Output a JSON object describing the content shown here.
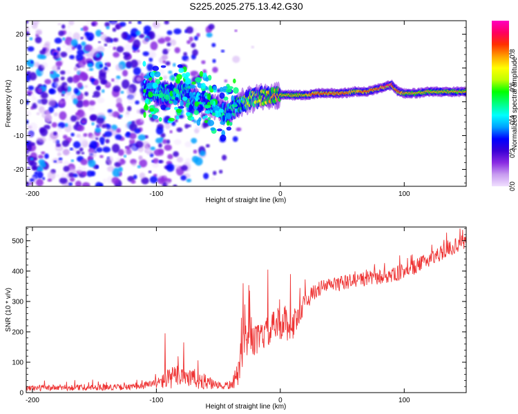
{
  "title": "S225.2025.275.13.42.G30",
  "chart_data": [
    {
      "type": "heatmap",
      "title": "S225.2025.275.13.42.G30",
      "xlabel": "Height of straight line (km)",
      "ylabel": "Frequency (Hz)",
      "xlim": [
        -205,
        150
      ],
      "ylim": [
        -25,
        24
      ],
      "xticks": [
        -200,
        -100,
        0,
        100
      ],
      "xtick_labels": [
        "-200",
        "-100",
        "0",
        "100"
      ],
      "yticks": [
        -20,
        -10,
        0,
        10,
        20
      ],
      "ytick_labels": [
        "-20",
        "-10",
        "0",
        "10",
        "20"
      ],
      "colorbar": {
        "label": "Normalized spectral amplitude",
        "range": [
          0,
          1
        ],
        "ticks": [
          0.0,
          0.2,
          0.4,
          0.6,
          0.8
        ],
        "tick_labels": [
          "0.0",
          "0.2",
          "0.4",
          "0.6",
          "0.8"
        ],
        "colors": [
          "#f0e0ff",
          "#c89cf0",
          "#8a2be2",
          "#3b00d6",
          "#0000ff",
          "#00a0ff",
          "#00ffff",
          "#00ff80",
          "#00ff00",
          "#c0ff00",
          "#ffff00",
          "#ffa000",
          "#ff3000",
          "#ff0060",
          "#ff00c0"
        ]
      },
      "ridge": {
        "x": [
          -110,
          -100,
          -90,
          -80,
          -70,
          -60,
          -50,
          -45,
          -40,
          -35,
          -30,
          -20,
          -10,
          0,
          10,
          20,
          30,
          40,
          50,
          60,
          70,
          80,
          85,
          90,
          95,
          100,
          110,
          120,
          130,
          140,
          150
        ],
        "y": [
          4,
          3,
          2,
          3,
          1,
          0,
          -2,
          -3,
          -3,
          -1,
          0,
          1,
          1.5,
          2,
          2,
          2,
          2.5,
          2.5,
          2.5,
          3,
          3,
          4,
          4.5,
          5,
          3,
          2.5,
          2.5,
          3,
          3,
          3,
          3
        ],
        "strength": [
          0.4,
          0.45,
          0.5,
          0.5,
          0.45,
          0.4,
          0.45,
          0.5,
          0.5,
          0.55,
          0.6,
          0.7,
          0.75,
          0.8,
          0.8,
          0.8,
          0.85,
          0.85,
          0.85,
          0.8,
          0.85,
          0.9,
          0.9,
          0.9,
          0.85,
          0.8,
          0.8,
          0.8,
          0.8,
          0.8,
          0.8
        ]
      }
    },
    {
      "type": "line",
      "xlabel": "Height of straight line (km)",
      "ylabel": "SNR (10 * v/v)",
      "xlim": [
        -205,
        150
      ],
      "ylim": [
        0,
        545
      ],
      "xticks": [
        -200,
        -100,
        0,
        100
      ],
      "xtick_labels": [
        "-200",
        "-100",
        "0",
        "100"
      ],
      "yticks": [
        0,
        100,
        200,
        300,
        400,
        500
      ],
      "ytick_labels": [
        "0",
        "100",
        "200",
        "300",
        "400",
        "500"
      ],
      "series": [
        {
          "name": "SNR",
          "color": "#ee3333",
          "trend_x": [
            -205,
            -120,
            -100,
            -90,
            -80,
            -70,
            -60,
            -50,
            -40,
            -35,
            -30,
            -25,
            -20,
            -10,
            0,
            10,
            20,
            30,
            40,
            50,
            60,
            70,
            80,
            90,
            100,
            110,
            120,
            130,
            140,
            150
          ],
          "trend_y": [
            15,
            18,
            30,
            45,
            60,
            45,
            35,
            20,
            25,
            50,
            150,
            200,
            170,
            200,
            230,
            220,
            300,
            340,
            355,
            360,
            370,
            375,
            380,
            385,
            400,
            415,
            440,
            460,
            480,
            500
          ],
          "noise": [
            10,
            10,
            15,
            35,
            40,
            35,
            25,
            12,
            15,
            40,
            70,
            70,
            50,
            50,
            60,
            50,
            30,
            25,
            25,
            25,
            25,
            25,
            25,
            25,
            25,
            25,
            25,
            25,
            25,
            25
          ],
          "peak_points": [
            [
              -93,
              195
            ],
            [
              -78,
              165
            ],
            [
              -30,
              360
            ],
            [
              -10,
              405
            ],
            [
              8,
              390
            ],
            [
              145,
              540
            ]
          ]
        }
      ]
    }
  ]
}
